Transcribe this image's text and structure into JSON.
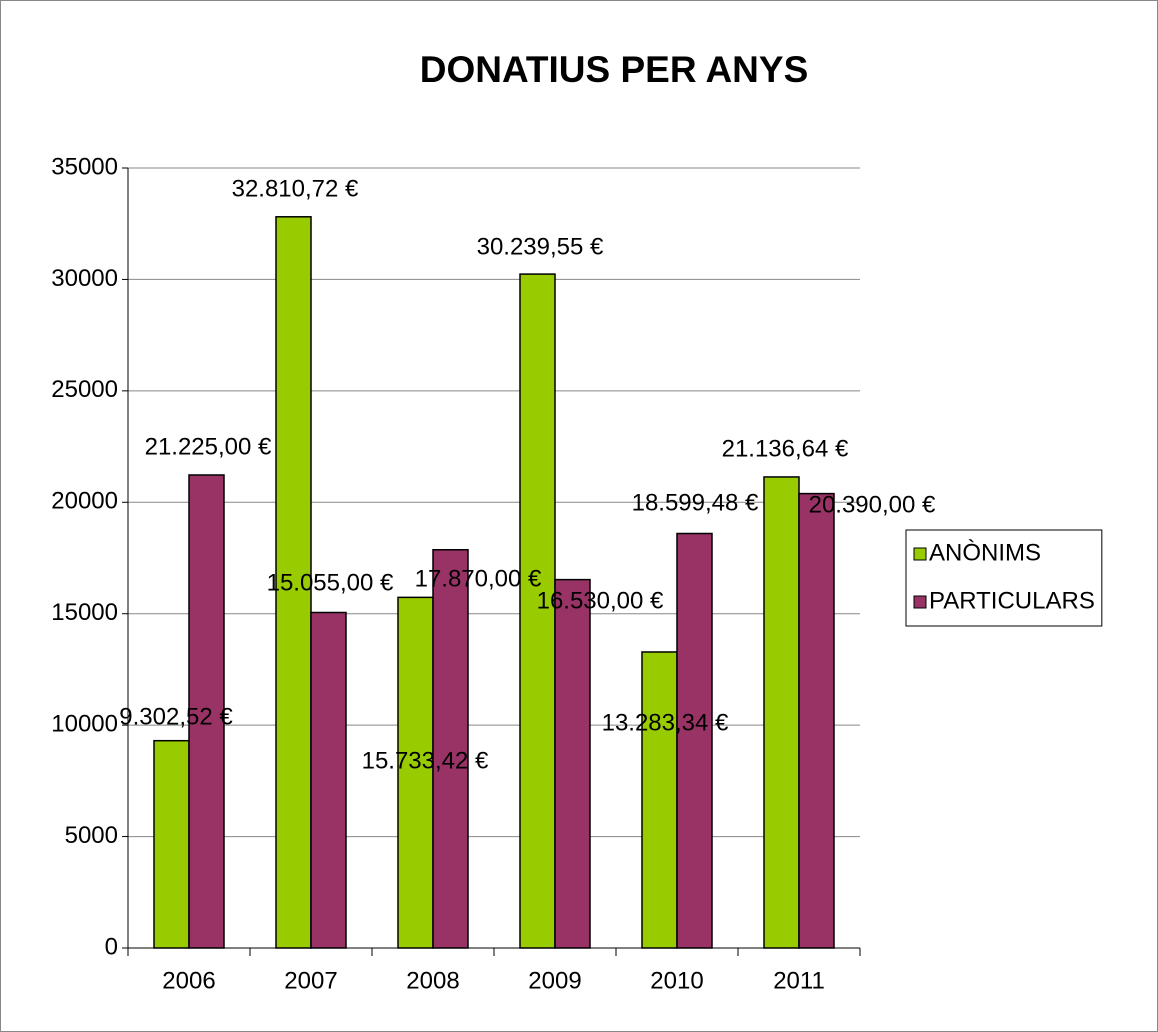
{
  "chart_data": {
    "type": "bar",
    "title": "DONATIUS PER ANYS",
    "categories": [
      "2006",
      "2007",
      "2008",
      "2009",
      "2010",
      "2011"
    ],
    "series": [
      {
        "name": "ANÒNIMS",
        "color": "#99cc00",
        "values": [
          9302.52,
          32810.72,
          15733.42,
          30239.55,
          13283.34,
          21136.64
        ],
        "value_labels": [
          "9.302,52 €",
          "32.810,72 €",
          "15.733,42 €",
          "30.239,55 €",
          "13.283,34 €",
          "21.136,64 €"
        ]
      },
      {
        "name": "PARTICULARS",
        "color": "#993366",
        "values": [
          21225,
          15055,
          17870,
          16530,
          18599.48,
          20390
        ],
        "value_labels": [
          "21.225,00 €",
          "15.055,00 €",
          "17.870,00 €",
          "16.530,00 €",
          "18.599,48 €",
          "20.390,00 €"
        ]
      }
    ],
    "ylim": [
      0,
      35000
    ],
    "yticks": [
      0,
      5000,
      10000,
      15000,
      20000,
      25000,
      30000,
      35000
    ],
    "grid": true,
    "legend": "right"
  }
}
